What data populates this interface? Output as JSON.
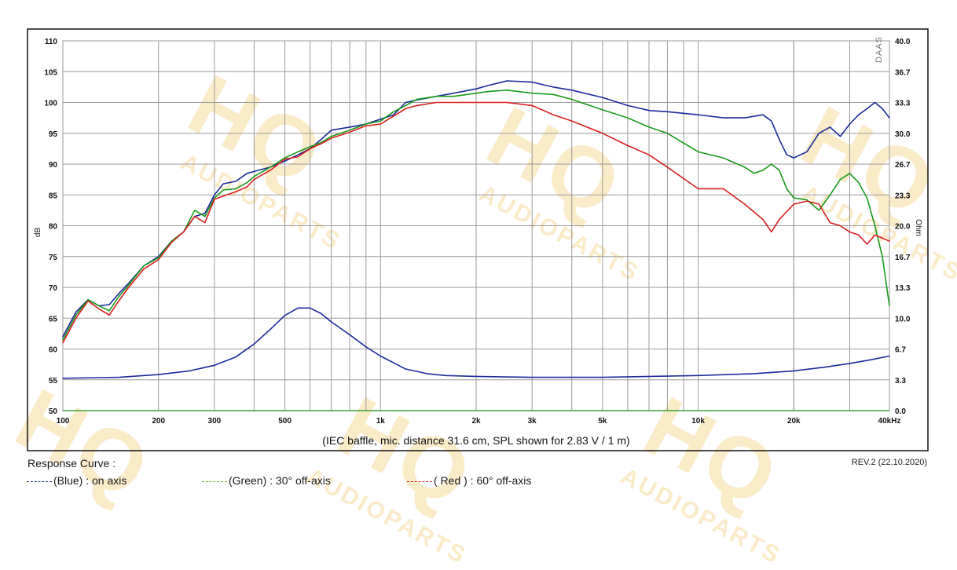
{
  "chart_data": {
    "type": "line",
    "caption": "(IEC baffle, mic. distance 31.6 cm, SPL shown for 2.83 V / 1 m)",
    "xlabel": "kHz",
    "ylabel": "dB",
    "y2label": "Ohm",
    "x_scale": "log",
    "xlim": [
      100,
      40000
    ],
    "ylim": [
      50,
      110
    ],
    "y2lim": [
      0,
      40
    ],
    "grid": true,
    "x_ticks": [
      {
        "v": 100,
        "label": "100"
      },
      {
        "v": 200,
        "label": "200"
      },
      {
        "v": 300,
        "label": "300"
      },
      {
        "v": 500,
        "label": "500"
      },
      {
        "v": 1000,
        "label": "1k"
      },
      {
        "v": 2000,
        "label": "2k"
      },
      {
        "v": 3000,
        "label": "3k"
      },
      {
        "v": 5000,
        "label": "5k"
      },
      {
        "v": 10000,
        "label": "10k"
      },
      {
        "v": 20000,
        "label": "20k"
      },
      {
        "v": 40000,
        "label": "40kHz"
      }
    ],
    "y_ticks": [
      {
        "v": 110,
        "label": "110"
      },
      {
        "v": 105,
        "label": "105"
      },
      {
        "v": 100,
        "label": "100"
      },
      {
        "v": 95,
        "label": "95"
      },
      {
        "v": 90,
        "label": "90"
      },
      {
        "v": 85,
        "label": "85"
      },
      {
        "v": 80,
        "label": "80"
      },
      {
        "v": 75,
        "label": "75"
      },
      {
        "v": 70,
        "label": "70"
      },
      {
        "v": 65,
        "label": "65"
      },
      {
        "v": 60,
        "label": "60"
      },
      {
        "v": 55,
        "label": "55"
      },
      {
        "v": 50,
        "label": "50"
      }
    ],
    "y2_ticks": [
      "40.0",
      "36.7",
      "33.3",
      "30.0",
      "26.7",
      "23.3",
      "20.0",
      "16.7",
      "13.3",
      "10.0",
      "6.7",
      "3.3",
      "0.0"
    ],
    "series": [
      {
        "name": "(Blue)  : on axis",
        "color": "#1b2a9c",
        "axis": "left",
        "points": [
          [
            100,
            62
          ],
          [
            110,
            66
          ],
          [
            120,
            68
          ],
          [
            130,
            67
          ],
          [
            140,
            67.2
          ],
          [
            150,
            69
          ],
          [
            160,
            70.5
          ],
          [
            180,
            73.5
          ],
          [
            200,
            75
          ],
          [
            220,
            77.5
          ],
          [
            240,
            79
          ],
          [
            260,
            81.5
          ],
          [
            280,
            82
          ],
          [
            300,
            85
          ],
          [
            320,
            86.8
          ],
          [
            350,
            87.2
          ],
          [
            380,
            88.5
          ],
          [
            400,
            88.8
          ],
          [
            450,
            89.5
          ],
          [
            500,
            90.5
          ],
          [
            550,
            91.5
          ],
          [
            600,
            92.5
          ],
          [
            650,
            94
          ],
          [
            700,
            95.5
          ],
          [
            800,
            96
          ],
          [
            900,
            96.5
          ],
          [
            1000,
            97.3
          ],
          [
            1100,
            98
          ],
          [
            1200,
            100
          ],
          [
            1300,
            100.4
          ],
          [
            1500,
            101
          ],
          [
            1700,
            101.5
          ],
          [
            2000,
            102.2
          ],
          [
            2200,
            102.8
          ],
          [
            2500,
            103.5
          ],
          [
            3000,
            103.3
          ],
          [
            3500,
            102.5
          ],
          [
            4000,
            102
          ],
          [
            5000,
            100.8
          ],
          [
            6000,
            99.5
          ],
          [
            7000,
            98.7
          ],
          [
            8000,
            98.5
          ],
          [
            10000,
            98
          ],
          [
            12000,
            97.5
          ],
          [
            14000,
            97.5
          ],
          [
            16000,
            98
          ],
          [
            17000,
            97
          ],
          [
            18000,
            94
          ],
          [
            19000,
            91.5
          ],
          [
            20000,
            91
          ],
          [
            22000,
            92
          ],
          [
            24000,
            95
          ],
          [
            26000,
            96
          ],
          [
            28000,
            94.5
          ],
          [
            30000,
            96.5
          ],
          [
            32000,
            98
          ],
          [
            34000,
            99
          ],
          [
            36000,
            100
          ],
          [
            38000,
            99
          ],
          [
            40000,
            97.5
          ]
        ]
      },
      {
        "name": "(Green) : 30° off-axis",
        "color": "#1a9a1a",
        "axis": "left",
        "points": [
          [
            100,
            61.5
          ],
          [
            110,
            65.5
          ],
          [
            120,
            68
          ],
          [
            130,
            67
          ],
          [
            140,
            66.2
          ],
          [
            150,
            68.5
          ],
          [
            160,
            70.2
          ],
          [
            180,
            73.5
          ],
          [
            200,
            74.8
          ],
          [
            220,
            77.5
          ],
          [
            240,
            79
          ],
          [
            260,
            82.5
          ],
          [
            280,
            81.5
          ],
          [
            300,
            84.5
          ],
          [
            320,
            85.8
          ],
          [
            350,
            86
          ],
          [
            380,
            87
          ],
          [
            400,
            88
          ],
          [
            450,
            89.5
          ],
          [
            500,
            91
          ],
          [
            550,
            92
          ],
          [
            600,
            92.8
          ],
          [
            650,
            93.5
          ],
          [
            700,
            94.5
          ],
          [
            800,
            95.5
          ],
          [
            900,
            96.5
          ],
          [
            1000,
            97
          ],
          [
            1100,
            98.5
          ],
          [
            1200,
            99.5
          ],
          [
            1300,
            100.5
          ],
          [
            1500,
            101
          ],
          [
            1700,
            101
          ],
          [
            2000,
            101.5
          ],
          [
            2200,
            101.8
          ],
          [
            2500,
            102
          ],
          [
            3000,
            101.5
          ],
          [
            3500,
            101.3
          ],
          [
            4000,
            100.5
          ],
          [
            5000,
            98.8
          ],
          [
            6000,
            97.5
          ],
          [
            7000,
            96
          ],
          [
            8000,
            95
          ],
          [
            10000,
            92
          ],
          [
            12000,
            91
          ],
          [
            14000,
            89.5
          ],
          [
            15000,
            88.5
          ],
          [
            16000,
            89
          ],
          [
            17000,
            90
          ],
          [
            18000,
            89
          ],
          [
            19000,
            86
          ],
          [
            20000,
            84.5
          ],
          [
            22000,
            84.2
          ],
          [
            24000,
            82.5
          ],
          [
            26000,
            85
          ],
          [
            28000,
            87.5
          ],
          [
            30000,
            88.5
          ],
          [
            32000,
            87
          ],
          [
            34000,
            84.5
          ],
          [
            36000,
            80
          ],
          [
            38000,
            75
          ],
          [
            40000,
            67
          ]
        ]
      },
      {
        "name": "( Red ) : 60° off-axis",
        "color": "#d91e1e",
        "axis": "left",
        "points": [
          [
            100,
            61
          ],
          [
            110,
            65
          ],
          [
            120,
            67.8
          ],
          [
            130,
            66.5
          ],
          [
            140,
            65.5
          ],
          [
            150,
            67.8
          ],
          [
            160,
            69.8
          ],
          [
            180,
            73
          ],
          [
            200,
            74.5
          ],
          [
            220,
            77.3
          ],
          [
            240,
            79
          ],
          [
            260,
            81.5
          ],
          [
            280,
            80.5
          ],
          [
            300,
            84.3
          ],
          [
            320,
            84.8
          ],
          [
            350,
            85.5
          ],
          [
            380,
            86.3
          ],
          [
            400,
            87.5
          ],
          [
            450,
            89
          ],
          [
            500,
            90.8
          ],
          [
            550,
            91.2
          ],
          [
            600,
            92.5
          ],
          [
            650,
            93.3
          ],
          [
            700,
            94.2
          ],
          [
            800,
            95.2
          ],
          [
            900,
            96.2
          ],
          [
            1000,
            96.5
          ],
          [
            1100,
            97.8
          ],
          [
            1200,
            99
          ],
          [
            1300,
            99.5
          ],
          [
            1500,
            100
          ],
          [
            1700,
            100
          ],
          [
            2000,
            100
          ],
          [
            2200,
            100
          ],
          [
            2500,
            100
          ],
          [
            3000,
            99.5
          ],
          [
            3500,
            98
          ],
          [
            4000,
            97
          ],
          [
            5000,
            95
          ],
          [
            6000,
            93
          ],
          [
            7000,
            91.5
          ],
          [
            8000,
            89.5
          ],
          [
            10000,
            86
          ],
          [
            12000,
            86
          ],
          [
            14000,
            83.5
          ],
          [
            16000,
            81
          ],
          [
            17000,
            79
          ],
          [
            18000,
            81
          ],
          [
            20000,
            83.5
          ],
          [
            22000,
            84
          ],
          [
            24000,
            83.5
          ],
          [
            26000,
            80.5
          ],
          [
            28000,
            80
          ],
          [
            30000,
            79
          ],
          [
            32000,
            78.5
          ],
          [
            34000,
            77
          ],
          [
            36000,
            78.5
          ],
          [
            38000,
            78
          ],
          [
            40000,
            77.5
          ]
        ]
      },
      {
        "name": "Impedance",
        "color": "#1b2a9c",
        "axis": "right",
        "points": [
          [
            100,
            3.5
          ],
          [
            150,
            3.6
          ],
          [
            200,
            3.9
          ],
          [
            250,
            4.3
          ],
          [
            300,
            4.9
          ],
          [
            350,
            5.8
          ],
          [
            400,
            7.2
          ],
          [
            450,
            8.8
          ],
          [
            500,
            10.3
          ],
          [
            550,
            11.1
          ],
          [
            600,
            11.1
          ],
          [
            650,
            10.5
          ],
          [
            700,
            9.6
          ],
          [
            800,
            8.2
          ],
          [
            900,
            6.9
          ],
          [
            1000,
            5.9
          ],
          [
            1200,
            4.5
          ],
          [
            1400,
            4
          ],
          [
            1600,
            3.8
          ],
          [
            2000,
            3.7
          ],
          [
            3000,
            3.6
          ],
          [
            5000,
            3.6
          ],
          [
            10000,
            3.8
          ],
          [
            15000,
            4
          ],
          [
            20000,
            4.3
          ],
          [
            25000,
            4.7
          ],
          [
            30000,
            5.1
          ],
          [
            35000,
            5.5
          ],
          [
            40000,
            5.9
          ]
        ]
      }
    ]
  },
  "legend": {
    "title": "Response Curve :",
    "items": [
      {
        "label": "(Blue)  : on axis",
        "color": "#1b2a9c"
      },
      {
        "label": "(Green) : 30° off-axis",
        "color": "#6ab02a"
      },
      {
        "label": "( Red ) : 60° off-axis",
        "color": "#d91e1e"
      }
    ]
  },
  "revision": "REV.2 (22.10.2020)",
  "software_mark": "DAAS",
  "watermark": {
    "brand": "HQ",
    "text": "AUDIOPARTS"
  }
}
